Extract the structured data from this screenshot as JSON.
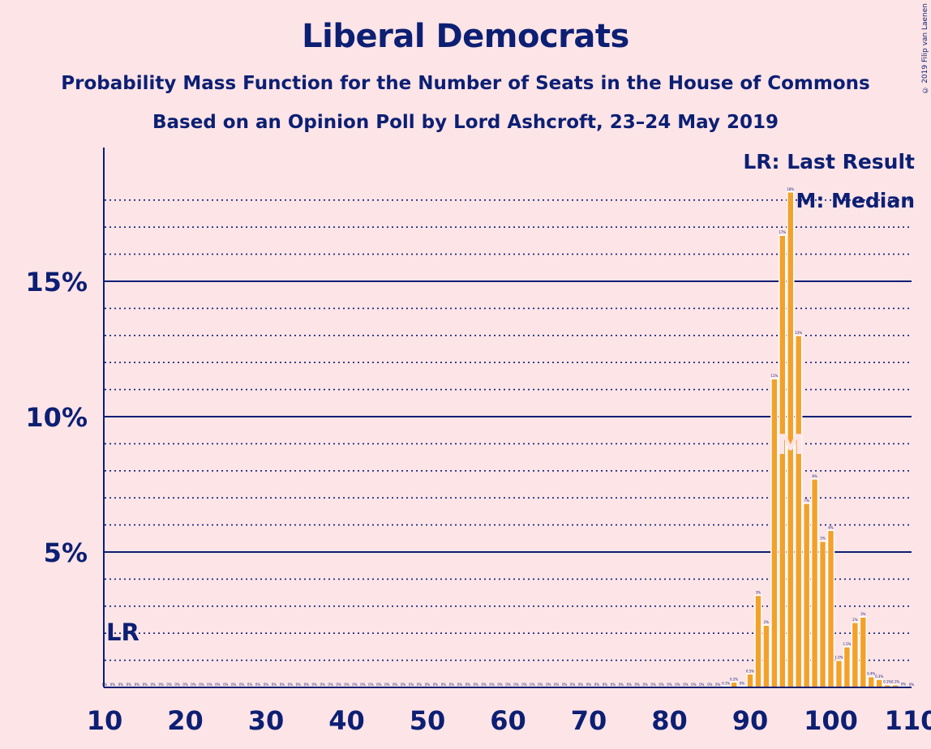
{
  "title": "Liberal Democrats",
  "subtitle": "Probability Mass Function for the Number of Seats in the House of Commons",
  "subtitle2": "Based on an Opinion Poll by Lord Ashcroft, 23–24 May 2019",
  "copyright": "© 2019 Filip van Laenen",
  "colors": {
    "background": "#fde4e7",
    "bar": "#f3a12b",
    "bar_stroke": "#ffffff",
    "axis": "#0c1f73"
  },
  "chart_data": {
    "type": "bar",
    "xlim": [
      10,
      110
    ],
    "ylim": [
      0,
      0.19
    ],
    "x_ticks": [
      10,
      20,
      30,
      40,
      50,
      60,
      70,
      80,
      90,
      100,
      110
    ],
    "x_tick_labels": [
      "10",
      "20",
      "30",
      "40",
      "50",
      "60",
      "70",
      "80",
      "90",
      "100",
      "110"
    ],
    "y_ticks": [
      0.05,
      0.1,
      0.15
    ],
    "y_tick_labels": [
      "5%",
      "10%",
      "15%"
    ],
    "minor_gridlines": [
      0.01,
      0.02,
      0.03,
      0.04,
      0.06,
      0.07,
      0.08,
      0.09,
      0.11,
      0.12,
      0.13,
      0.14,
      0.16,
      0.17,
      0.18
    ],
    "legend": {
      "position": "top-right",
      "entries": [
        "LR: Last Result",
        "M: Median"
      ]
    },
    "last_result": {
      "seat": 12,
      "label": "LR"
    },
    "median": {
      "seat": 95,
      "label": "M"
    },
    "seats": [
      87,
      88,
      89,
      90,
      91,
      92,
      93,
      94,
      95,
      96,
      97,
      98,
      99,
      100,
      101,
      102,
      103,
      104,
      105,
      106,
      107,
      108,
      109
    ],
    "values": [
      0.0005,
      0.002,
      0.0005,
      0.005,
      0.034,
      0.023,
      0.114,
      0.167,
      0.183,
      0.13,
      0.068,
      0.077,
      0.054,
      0.058,
      0.01,
      0.015,
      0.024,
      0.026,
      0.004,
      0.003,
      0.001,
      0.001,
      0.0001
    ],
    "value_labels": [
      "0.1%",
      "0.2%",
      "0%",
      "0.5%",
      "3%",
      "2%",
      "11%",
      "17%",
      "18%",
      "13%",
      "7%",
      "8%",
      "5%",
      "6%",
      "1.0%",
      "1.5%",
      "2%",
      "3%",
      "0.4%",
      "0.3%",
      "0.1%",
      "0.1%",
      "0%"
    ],
    "zero_label": "0%"
  }
}
